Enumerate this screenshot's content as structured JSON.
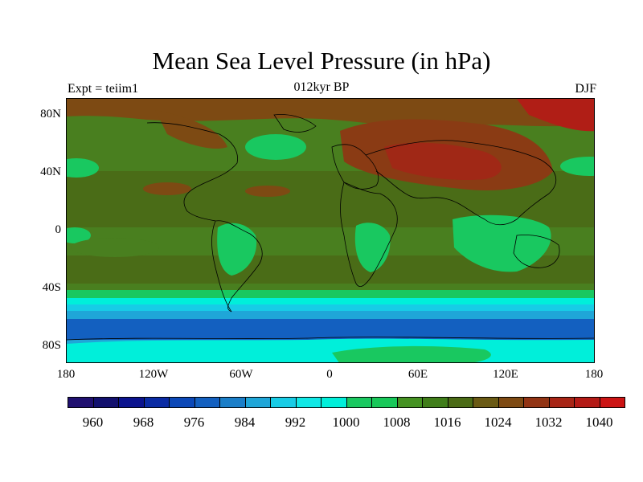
{
  "title": "Mean Sea Level Pressure (in hPa)",
  "subtitle_left": "Expt = teiim1",
  "subtitle_center": "012kyr BP",
  "subtitle_right": "DJF",
  "map": {
    "projection": "cylindrical-equidistant",
    "lat_labels": [
      "80N",
      "40N",
      "0",
      "40S",
      "80S"
    ],
    "lon_labels": [
      "180",
      "120W",
      "60W",
      "0",
      "60E",
      "120E",
      "180"
    ],
    "lat_range": [
      -90,
      90
    ],
    "lon_range": [
      -180,
      180
    ]
  },
  "colorbar": {
    "tick_labels": [
      "960",
      "968",
      "976",
      "984",
      "992",
      "1000",
      "1008",
      "1016",
      "1024",
      "1032",
      "1040"
    ],
    "levels": [
      956,
      960,
      964,
      968,
      972,
      976,
      980,
      984,
      988,
      992,
      996,
      1000,
      1004,
      1008,
      1012,
      1016,
      1020,
      1024,
      1028,
      1032,
      1036,
      1040
    ],
    "colors": [
      "#201070",
      "#12106e",
      "#0b138e",
      "#0a2ba4",
      "#0b48b8",
      "#1360c0",
      "#1a7ec8",
      "#1fa6d8",
      "#17cce6",
      "#10e8e6",
      "#00efda",
      "#19c860",
      "#18c859",
      "#459222",
      "#407e1a",
      "#4b6b16",
      "#6a5a14",
      "#7e4a13",
      "#923414",
      "#a82516",
      "#b41a16",
      "#cc1414"
    ]
  }
}
